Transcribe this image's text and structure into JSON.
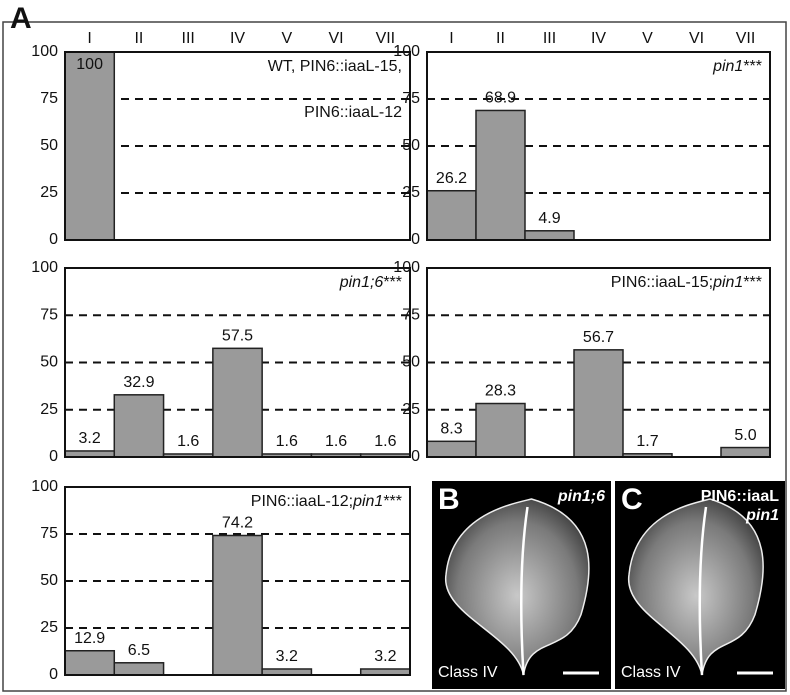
{
  "panel_label": "A",
  "chart_data": [
    {
      "type": "bar",
      "categories": [
        "I",
        "II",
        "III",
        "IV",
        "V",
        "VI",
        "VII"
      ],
      "values": [
        100,
        null,
        null,
        null,
        null,
        null,
        null
      ],
      "annotation": [
        [
          {
            "text": "WT, PIN6::iaaL-15,"
          }
        ],
        [
          {
            "text": "PIN6::iaaL-12"
          }
        ]
      ],
      "ylim": [
        0,
        100
      ],
      "yticks": [
        0,
        25,
        50,
        75,
        100
      ],
      "grid": true,
      "color": "#9a9a9a"
    },
    {
      "type": "bar",
      "categories": [
        "I",
        "II",
        "III",
        "IV",
        "V",
        "VI",
        "VII"
      ],
      "values": [
        26.2,
        68.9,
        4.9,
        null,
        null,
        null,
        null
      ],
      "annotation": [
        [
          {
            "text": "pin1",
            "italic": true
          },
          {
            "text": "***"
          }
        ]
      ],
      "ylim": [
        0,
        100
      ],
      "yticks": [
        0,
        25,
        50,
        75,
        100
      ],
      "grid": true,
      "color": "#9a9a9a"
    },
    {
      "type": "bar",
      "values": [
        3.2,
        32.9,
        1.6,
        57.5,
        1.6,
        1.6,
        1.6
      ],
      "annotation": [
        [
          {
            "text": "pin1;6",
            "italic": true
          },
          {
            "text": "***"
          }
        ]
      ],
      "ylim": [
        0,
        100
      ],
      "yticks": [
        0,
        25,
        50,
        75,
        100
      ],
      "grid": true,
      "color": "#9a9a9a"
    },
    {
      "type": "bar",
      "values": [
        8.3,
        28.3,
        null,
        56.7,
        1.7,
        null,
        5.0
      ],
      "value_labels": [
        "8.3",
        "28.3",
        null,
        "56.7",
        "1.7",
        null,
        "5.0"
      ],
      "annotation": [
        [
          {
            "text": "PIN6::iaaL-15;"
          },
          {
            "text": "pin1",
            "italic": true
          },
          {
            "text": "***"
          }
        ]
      ],
      "ylim": [
        0,
        100
      ],
      "yticks": [
        0,
        25,
        50,
        75,
        100
      ],
      "grid": true,
      "color": "#9a9a9a"
    },
    {
      "type": "bar",
      "values": [
        12.9,
        6.5,
        null,
        74.2,
        3.2,
        null,
        3.2
      ],
      "annotation": [
        [
          {
            "text": "PIN6::iaaL-12;"
          },
          {
            "text": "pin1",
            "italic": true
          },
          {
            "text": "***"
          }
        ]
      ],
      "ylim": [
        0,
        100
      ],
      "yticks": [
        0,
        25,
        50,
        75,
        100
      ],
      "grid": true,
      "color": "#9a9a9a"
    }
  ],
  "photos": [
    {
      "label": "B",
      "genotype": [
        [
          {
            "text": "pin1;6",
            "italic": true
          }
        ]
      ],
      "class": "Class IV"
    },
    {
      "label": "C",
      "genotype": [
        [
          {
            "text": "PIN6::iaaL"
          }
        ],
        [
          {
            "text": "pin1",
            "italic": true
          }
        ]
      ],
      "class": "Class IV"
    }
  ]
}
